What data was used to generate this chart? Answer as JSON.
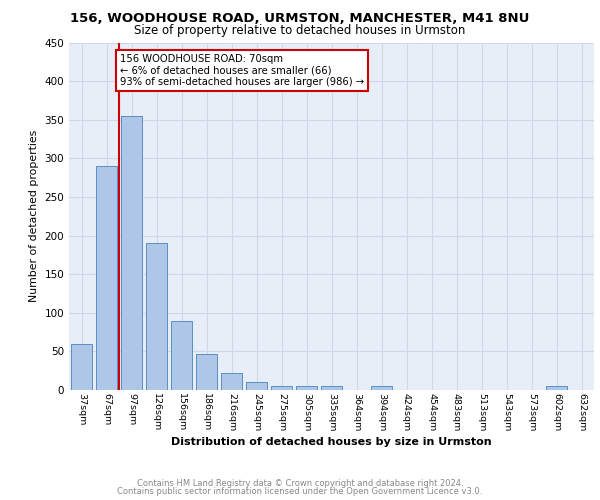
{
  "title": "156, WOODHOUSE ROAD, URMSTON, MANCHESTER, M41 8NU",
  "subtitle": "Size of property relative to detached houses in Urmston",
  "xlabel": "Distribution of detached houses by size in Urmston",
  "ylabel": "Number of detached properties",
  "categories": [
    "37sqm",
    "67sqm",
    "97sqm",
    "126sqm",
    "156sqm",
    "186sqm",
    "216sqm",
    "245sqm",
    "275sqm",
    "305sqm",
    "335sqm",
    "364sqm",
    "394sqm",
    "424sqm",
    "454sqm",
    "483sqm",
    "513sqm",
    "543sqm",
    "573sqm",
    "602sqm",
    "632sqm"
  ],
  "values": [
    60,
    290,
    355,
    190,
    90,
    47,
    22,
    10,
    5,
    5,
    5,
    0,
    5,
    0,
    0,
    0,
    0,
    0,
    0,
    5,
    0
  ],
  "bar_color": "#aec6e8",
  "bar_edge_color": "#5a8fc2",
  "property_line_color": "#cc0000",
  "annotation_text": "156 WOODHOUSE ROAD: 70sqm\n← 6% of detached houses are smaller (66)\n93% of semi-detached houses are larger (986) →",
  "annotation_box_color": "#ffffff",
  "annotation_box_edge_color": "#cc0000",
  "ylim": [
    0,
    450
  ],
  "yticks": [
    0,
    50,
    100,
    150,
    200,
    250,
    300,
    350,
    400,
    450
  ],
  "footer_line1": "Contains HM Land Registry data © Crown copyright and database right 2024.",
  "footer_line2": "Contains public sector information licensed under the Open Government Licence v3.0.",
  "grid_color": "#d0d8e8",
  "background_color": "#e8eef8",
  "title_fontsize": 9.5,
  "subtitle_fontsize": 8.5
}
